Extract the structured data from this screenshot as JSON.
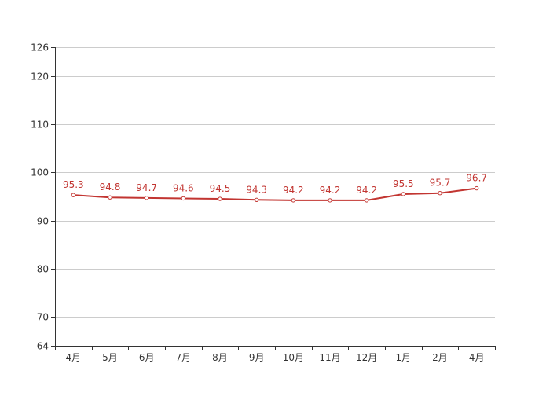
{
  "chart_data": {
    "type": "line",
    "title": "",
    "xlabel": "",
    "ylabel": "",
    "categories": [
      "4月",
      "5月",
      "6月",
      "7月",
      "8月",
      "9月",
      "10月",
      "11月",
      "12月",
      "1月",
      "2月",
      "4月"
    ],
    "series": [
      {
        "values": [
          95.3,
          94.8,
          94.7,
          94.6,
          94.5,
          94.3,
          94.2,
          94.2,
          94.2,
          95.5,
          95.7,
          96.7
        ],
        "color": "#c23531"
      }
    ],
    "ylim": [
      64,
      126
    ],
    "yticks": [
      64,
      70,
      80,
      90,
      100,
      110,
      120,
      126
    ],
    "ytick_labels": [
      "64",
      "70",
      "80",
      "90",
      "100",
      "110",
      "120",
      "126"
    ],
    "data_labels": [
      "95.3",
      "94.8",
      "94.7",
      "94.6",
      "94.5",
      "94.3",
      "94.2",
      "94.2",
      "94.2",
      "95.5",
      "95.7",
      "96.7"
    ],
    "grid": true,
    "gridline_color": "#cccccc",
    "axis_color": "#333333"
  }
}
